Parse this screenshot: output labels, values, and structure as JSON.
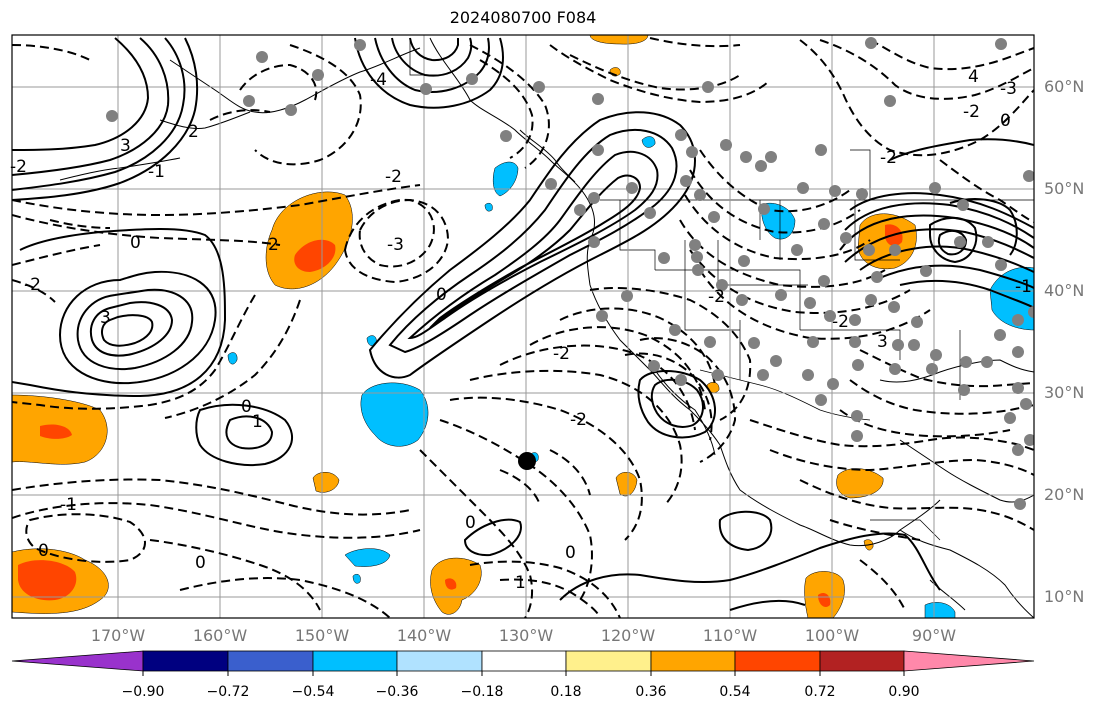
{
  "title": "2024080700 F084",
  "lat_labels": [
    "60°N",
    "50°N",
    "40°N",
    "30°N",
    "20°N",
    "10°N"
  ],
  "lon_labels": [
    "170°W",
    "160°W",
    "150°W",
    "140°W",
    "130°W",
    "120°W",
    "110°W",
    "100°W",
    "90°W"
  ],
  "colorbar": {
    "ticks": [
      "−0.90",
      "−0.72",
      "−0.54",
      "−0.36",
      "−0.18",
      "0.18",
      "0.36",
      "0.54",
      "0.72",
      "0.90"
    ],
    "colors": [
      "#9932cc",
      "#000080",
      "#3a5fcd",
      "#00bfff",
      "#b0e2ff",
      "#ffffff",
      "#fff08c",
      "#ffa500",
      "#ff4500",
      "#b22222",
      "#ff88aa"
    ]
  },
  "contour_labels": {
    "l1": "2",
    "l2": "3",
    "l3": "-2",
    "l4": "0",
    "l5": "1",
    "l6": "2",
    "l7": "-3",
    "l8": "-2",
    "l9": "0",
    "l10": "-2",
    "l11": "-1",
    "l12": "0",
    "l13": "0",
    "l14": "1",
    "l15": "-2",
    "l16": "0",
    "l17": "-2",
    "l18": "-4",
    "l19": "-3",
    "l20": "-2",
    "l21": "0",
    "l22": "4",
    "l23": "-2",
    "l24": "3",
    "l25": "0",
    "l26": "-1",
    "l27": "0",
    "l28": "-1",
    "l29": "-2",
    "l30": "-2",
    "l31": "3"
  },
  "colors": {
    "positive_fill": "#ffa500",
    "strong_positive_fill": "#ff4500",
    "negative_fill": "#00bfff",
    "station_marker": "#808080"
  }
}
